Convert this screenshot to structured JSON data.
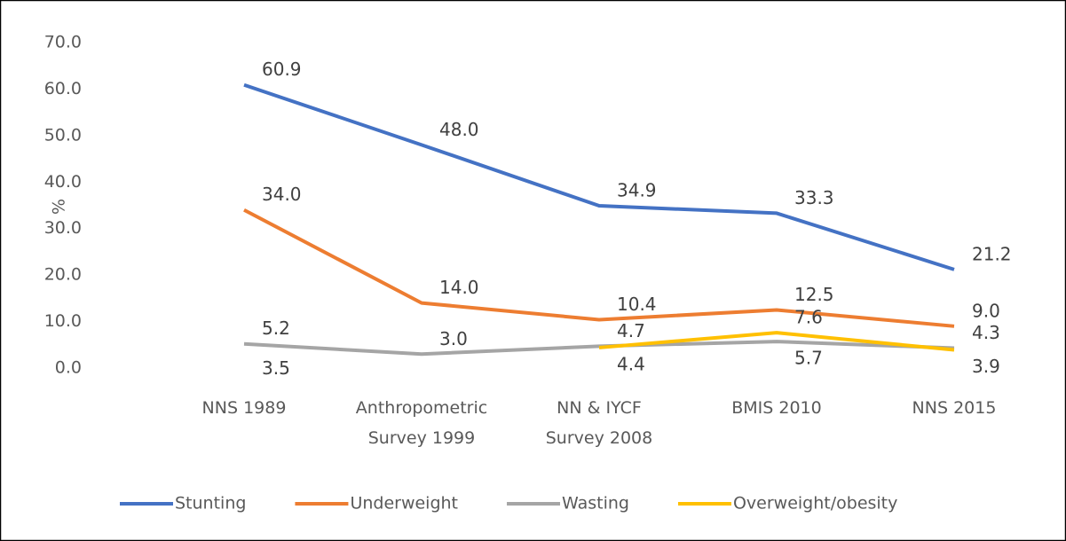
{
  "chart_data": {
    "type": "line",
    "y_label": "%",
    "categories": [
      "NNS 1989",
      "Anthropometric Survey 1999",
      "NN & IYCF Survey 2008",
      "BMIS 2010",
      "NNS 2015"
    ],
    "ylim": [
      0,
      70
    ],
    "yticks": [
      {
        "value": 0,
        "label": "0.0"
      },
      {
        "value": 10,
        "label": "10.0"
      },
      {
        "value": 20,
        "label": "20.0"
      },
      {
        "value": 30,
        "label": "30.0"
      },
      {
        "value": 40,
        "label": "40.0"
      },
      {
        "value": 50,
        "label": "50.0"
      },
      {
        "value": 60,
        "label": "60.0"
      },
      {
        "value": 70,
        "label": "70.0"
      }
    ],
    "series": [
      {
        "name": "Stunting",
        "color": "#4472c4",
        "values": [
          60.9,
          48.0,
          34.9,
          33.3,
          21.2
        ],
        "value_labels": [
          "60.9",
          "48.0",
          "34.9",
          "33.3",
          "21.2"
        ]
      },
      {
        "name": "Underweight",
        "color": "#ed7d31",
        "values": [
          34.0,
          14.0,
          10.4,
          12.5,
          9.0
        ],
        "value_labels": [
          "34.0",
          "14.0",
          "10.4",
          "12.5",
          "9.0"
        ]
      },
      {
        "name": "Wasting",
        "color": "#a5a5a5",
        "values": [
          5.2,
          3.0,
          4.7,
          5.7,
          4.3
        ],
        "value_labels": [
          "5.2",
          "3.0",
          "4.7",
          "5.7",
          "4.3"
        ]
      },
      {
        "name": "Overweight/obesity",
        "color": "#ffc000",
        "values": [
          3.5,
          null,
          4.4,
          7.6,
          3.9
        ],
        "value_labels": [
          "3.5",
          null,
          "4.4",
          "7.6",
          "3.9"
        ]
      }
    ],
    "legend": "bottom"
  }
}
